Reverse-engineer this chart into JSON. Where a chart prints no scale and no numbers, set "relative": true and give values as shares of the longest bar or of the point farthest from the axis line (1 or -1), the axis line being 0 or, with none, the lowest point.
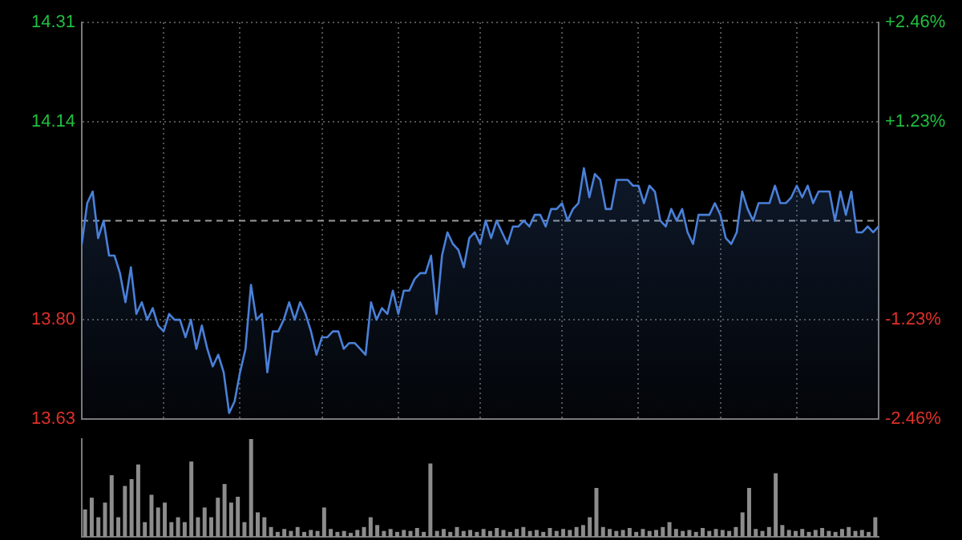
{
  "chart_data": [
    {
      "type": "area",
      "tick_labels": "y",
      "grid": true,
      "categories": [
        null,
        null,
        null,
        null,
        null,
        null,
        null,
        null,
        null,
        null,
        null,
        null,
        null,
        null,
        null,
        null,
        null,
        null,
        null,
        null,
        null,
        null,
        null,
        null,
        null,
        null,
        null,
        null,
        null,
        null,
        null,
        null,
        null,
        null,
        null,
        null,
        null,
        null,
        null,
        null,
        null,
        null,
        null,
        null,
        null,
        null,
        null,
        null,
        null,
        null,
        null,
        null,
        null,
        null,
        null,
        null,
        null,
        null,
        null,
        null,
        null,
        null,
        null,
        null,
        null,
        null,
        null,
        null,
        null,
        null,
        null,
        null,
        null,
        null,
        null,
        null,
        null,
        null,
        null,
        null,
        null,
        null,
        null,
        null,
        null,
        null,
        null,
        null,
        null,
        null,
        null,
        null,
        null,
        null,
        null,
        null,
        null,
        null,
        null,
        null,
        null,
        null,
        null,
        null,
        null,
        null,
        null,
        null,
        null,
        null,
        null,
        null,
        null,
        null,
        null,
        null,
        null,
        null,
        null,
        null,
        null,
        null,
        null,
        null,
        null,
        null,
        null,
        null,
        null,
        null,
        null,
        null,
        null,
        null,
        null,
        null,
        null,
        null,
        null,
        null,
        null,
        null,
        null,
        null,
        null,
        null,
        null
      ],
      "ylim": [
        13.63,
        14.31
      ],
      "yticks": [
        13.63,
        {
          "value": 13.8,
          "label": "13.80"
        },
        14.14,
        14.31
      ],
      "y2lim": [
        -2.46,
        2.46
      ],
      "y2ticks": [
        {
          "value": -2.46,
          "label": "-2.46%"
        },
        {
          "value": -1.23,
          "label": "-1.23%"
        },
        {
          "value": 1.23,
          "label": "+1.23%"
        },
        {
          "value": 2.46,
          "label": "+2.46%"
        }
      ],
      "ref_lines": [
        {
          "axis": "y",
          "value": 13.97,
          "line_style": "dashed",
          "color": "#9a9a9a"
        }
      ],
      "series": [
        {
          "color": "#4a80d8",
          "values": [
            13.93,
            14.0,
            14.02,
            13.94,
            13.97,
            13.91,
            13.91,
            13.88,
            13.83,
            13.89,
            13.81,
            13.83,
            13.8,
            13.82,
            13.79,
            13.78,
            13.81,
            13.8,
            13.8,
            13.77,
            13.8,
            13.75,
            13.79,
            13.75,
            13.72,
            13.74,
            13.71,
            13.64,
            13.66,
            13.71,
            13.75,
            13.86,
            13.8,
            13.81,
            13.71,
            13.78,
            13.78,
            13.8,
            13.83,
            13.8,
            13.83,
            13.81,
            13.78,
            13.74,
            13.77,
            13.77,
            13.78,
            13.78,
            13.75,
            13.76,
            13.76,
            13.75,
            13.74,
            13.83,
            13.8,
            13.82,
            13.81,
            13.85,
            13.81,
            13.85,
            13.85,
            13.87,
            13.88,
            13.88,
            13.91,
            13.81,
            13.91,
            13.95,
            13.93,
            13.92,
            13.89,
            13.94,
            13.95,
            13.93,
            13.97,
            13.94,
            13.97,
            13.95,
            13.93,
            13.96,
            13.96,
            13.97,
            13.96,
            13.98,
            13.98,
            13.96,
            13.99,
            13.99,
            14.0,
            13.97,
            13.99,
            14.0,
            14.06,
            14.01,
            14.05,
            14.04,
            13.99,
            13.99,
            14.04,
            14.04,
            14.04,
            14.03,
            14.03,
            14.0,
            14.03,
            14.02,
            13.97,
            13.96,
            13.99,
            13.97,
            13.99,
            13.95,
            13.93,
            13.98,
            13.98,
            13.98,
            14.0,
            13.98,
            13.94,
            13.93,
            13.95,
            14.02,
            13.99,
            13.97,
            14.0,
            14.0,
            14.0,
            14.03,
            14.0,
            14.0,
            14.01,
            14.03,
            14.01,
            14.03,
            14.0,
            14.02,
            14.02,
            14.02,
            13.97,
            14.02,
            13.98,
            14.02,
            13.95,
            13.95,
            13.96,
            13.95,
            13.96
          ]
        }
      ]
    },
    {
      "type": "bar",
      "relative": true,
      "categories": [
        null,
        null,
        null,
        null,
        null,
        null,
        null,
        null,
        null,
        null,
        null,
        null,
        null,
        null,
        null,
        null,
        null,
        null,
        null,
        null,
        null,
        null,
        null,
        null,
        null,
        null,
        null,
        null,
        null,
        null,
        null,
        null,
        null,
        null,
        null,
        null,
        null,
        null,
        null,
        null,
        null,
        null,
        null,
        null,
        null,
        null,
        null,
        null,
        null,
        null,
        null,
        null,
        null,
        null,
        null,
        null,
        null,
        null,
        null,
        null,
        null,
        null,
        null,
        null,
        null,
        null,
        null,
        null,
        null,
        null,
        null,
        null,
        null,
        null,
        null,
        null,
        null,
        null,
        null,
        null,
        null,
        null,
        null,
        null,
        null,
        null,
        null,
        null,
        null,
        null,
        null,
        null,
        null,
        null,
        null,
        null,
        null,
        null,
        null,
        null,
        null,
        null,
        null,
        null,
        null,
        null,
        null,
        null,
        null,
        null,
        null,
        null,
        null,
        null,
        null,
        null,
        null,
        null,
        null,
        null
      ],
      "series": [
        {
          "color": "#8c8c8c",
          "values": [
            0.28,
            0.4,
            0.2,
            0.35,
            0.63,
            0.2,
            0.52,
            0.59,
            0.74,
            0.15,
            0.43,
            0.3,
            0.35,
            0.15,
            0.2,
            0.15,
            0.77,
            0.2,
            0.3,
            0.2,
            0.4,
            0.54,
            0.35,
            0.41,
            0.15,
            1,
            0.25,
            0.2,
            0.1,
            0.05,
            0.08,
            0.06,
            0.1,
            0.05,
            0.07,
            0.06,
            0.3,
            0.08,
            0.05,
            0.06,
            0.04,
            0.07,
            0.1,
            0.2,
            0.12,
            0.06,
            0.08,
            0.05,
            0.07,
            0.06,
            0.09,
            0.05,
            0.75,
            0.06,
            0.08,
            0.05,
            0.1,
            0.06,
            0.07,
            0.05,
            0.08,
            0.06,
            0.09,
            0.07,
            0.05,
            0.08,
            0.1,
            0.06,
            0.07,
            0.05,
            0.09,
            0.06,
            0.08,
            0.07,
            0.1,
            0.12,
            0.2,
            0.5,
            0.1,
            0.08,
            0.06,
            0.07,
            0.09,
            0.05,
            0.08,
            0.06,
            0.07,
            0.1,
            0.15,
            0.08,
            0.06,
            0.07,
            0.05,
            0.09,
            0.06,
            0.08,
            0.07,
            0.06,
            0.1,
            0.25,
            0.5,
            0.08,
            0.06,
            0.1,
            0.65,
            0.12,
            0.07,
            0.06,
            0.08,
            0.05,
            0.07,
            0.09,
            0.06,
            0.05,
            0.08,
            0.1,
            0.06,
            0.07,
            0.05,
            0.2
          ]
        }
      ]
    }
  ]
}
